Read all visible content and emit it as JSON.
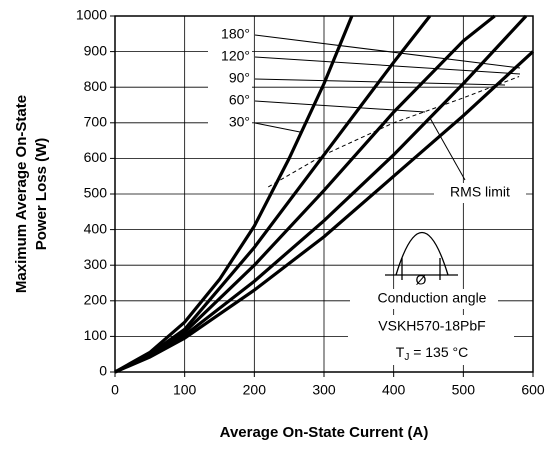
{
  "chart_data": {
    "type": "line",
    "ylabel": [
      "Maximum Average On-State",
      "Power Loss (W)"
    ],
    "xlabel": "Average On-State Current (A)",
    "xlim": [
      0,
      600
    ],
    "xticks": [
      0,
      100,
      200,
      300,
      400,
      500,
      600
    ],
    "ylim": [
      0,
      1000
    ],
    "yticks": [
      0,
      100,
      200,
      300,
      400,
      500,
      600,
      700,
      800,
      900,
      1000
    ],
    "grid": true,
    "series": [
      {
        "name": "180°",
        "color": "#000000",
        "x": [
          0,
          50,
          100,
          150,
          200,
          250,
          300,
          340
        ],
        "values": [
          0,
          55,
          140,
          260,
          410,
          600,
          810,
          1000
        ]
      },
      {
        "name": "120°",
        "color": "#000000",
        "x": [
          0,
          50,
          100,
          200,
          300,
          400,
          452
        ],
        "values": [
          0,
          50,
          120,
          350,
          610,
          870,
          1000
        ]
      },
      {
        "name": "90°",
        "color": "#000000",
        "x": [
          0,
          50,
          100,
          200,
          300,
          400,
          500,
          545
        ],
        "values": [
          0,
          48,
          112,
          300,
          510,
          730,
          930,
          1000
        ]
      },
      {
        "name": "60°",
        "color": "#000000",
        "x": [
          0,
          50,
          100,
          200,
          300,
          400,
          500,
          590
        ],
        "values": [
          0,
          45,
          103,
          255,
          425,
          610,
          810,
          1000
        ]
      },
      {
        "name": "30°",
        "color": "#000000",
        "x": [
          0,
          50,
          100,
          200,
          300,
          400,
          500,
          600
        ],
        "values": [
          0,
          42,
          95,
          230,
          380,
          550,
          720,
          900
        ]
      },
      {
        "name": "RMS limit",
        "color": "#000000",
        "dash": true,
        "x": [
          220,
          300,
          400,
          500,
          580
        ],
        "values": [
          520,
          610,
          700,
          770,
          830
        ]
      }
    ],
    "annotations": {
      "waveform_symbol": "Ø",
      "conduction": "Conduction angle",
      "device": "VSKH570-18PbF",
      "temperature": {
        "main": "T",
        "sub": "J",
        "rest": " = 135 °C"
      }
    }
  }
}
